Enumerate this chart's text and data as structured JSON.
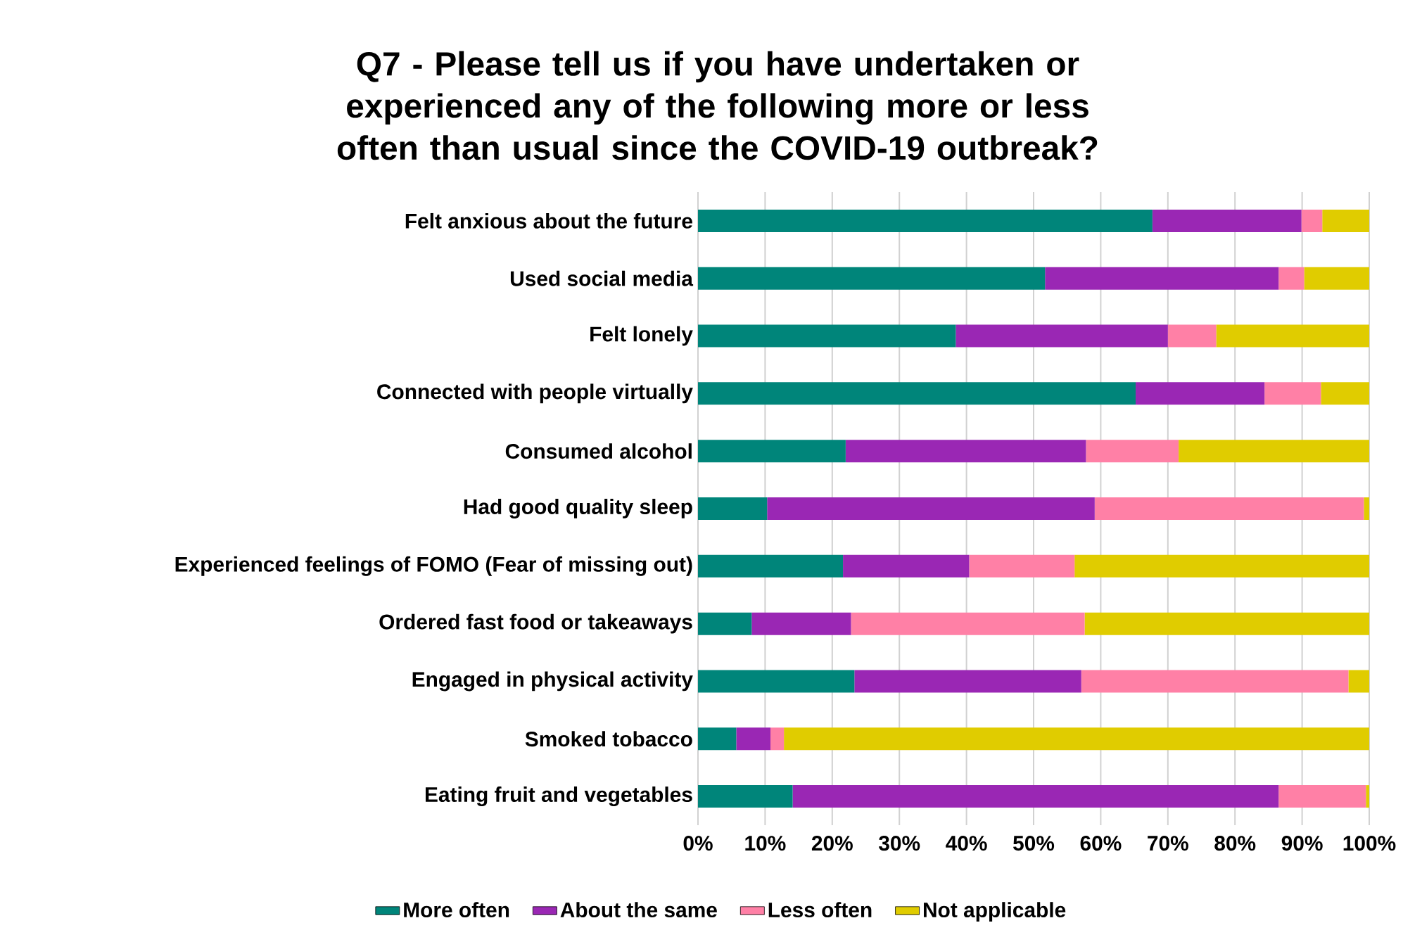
{
  "chart_data": {
    "type": "bar",
    "title": "Q7 - Please tell us if you have undertaken or experienced any of the following more or less often than usual since the COVID-19 outbreak?",
    "orientation": "horizontal",
    "stacked": true,
    "grid": "x",
    "legend": "bottom",
    "categories": [
      "Felt anxious about the future",
      "Used social media",
      "Felt lonely",
      "Connected with people virtually",
      "Consumed alcohol",
      "Had good quality sleep",
      "Experienced feelings of FOMO (Fear of missing out)",
      "Ordered fast food or takeaways",
      "Engaged in physical activity",
      "Smoked tobacco",
      "Eating fruit and vegetables"
    ],
    "xlim": [
      0,
      100
    ],
    "xticks": [
      {
        "value": 0,
        "label": "0%"
      },
      {
        "value": 10,
        "label": "10%"
      },
      {
        "value": 20,
        "label": "20%"
      },
      {
        "value": 30,
        "label": "30%"
      },
      {
        "value": 40,
        "label": "40%"
      },
      {
        "value": 50,
        "label": "50%"
      },
      {
        "value": 60,
        "label": "60%"
      },
      {
        "value": 70,
        "label": "70%"
      },
      {
        "value": 80,
        "label": "80%"
      },
      {
        "value": 90,
        "label": "90%"
      },
      {
        "value": 100,
        "label": "100%"
      }
    ],
    "series": [
      {
        "name": "More often",
        "color": "#00857a",
        "values": [
          67.7,
          51.7,
          38.4,
          65.2,
          22.0,
          10.3,
          21.6,
          8.0,
          23.3,
          5.7,
          14.1
        ]
      },
      {
        "name": "About the same",
        "color": "#9a27b4",
        "values": [
          22.2,
          34.8,
          31.6,
          19.2,
          35.8,
          48.8,
          18.8,
          14.8,
          33.8,
          5.1,
          72.4
        ]
      },
      {
        "name": "Less often",
        "color": "#ff80a6",
        "values": [
          3.1,
          3.8,
          7.2,
          8.4,
          13.8,
          40.1,
          15.7,
          34.8,
          39.8,
          2.0,
          13.0
        ]
      },
      {
        "name": "Not applicable",
        "color": "#e0cc00",
        "values": [
          7.0,
          9.7,
          22.8,
          7.2,
          28.4,
          0.8,
          43.9,
          42.4,
          3.1,
          87.2,
          0.5
        ]
      }
    ]
  }
}
